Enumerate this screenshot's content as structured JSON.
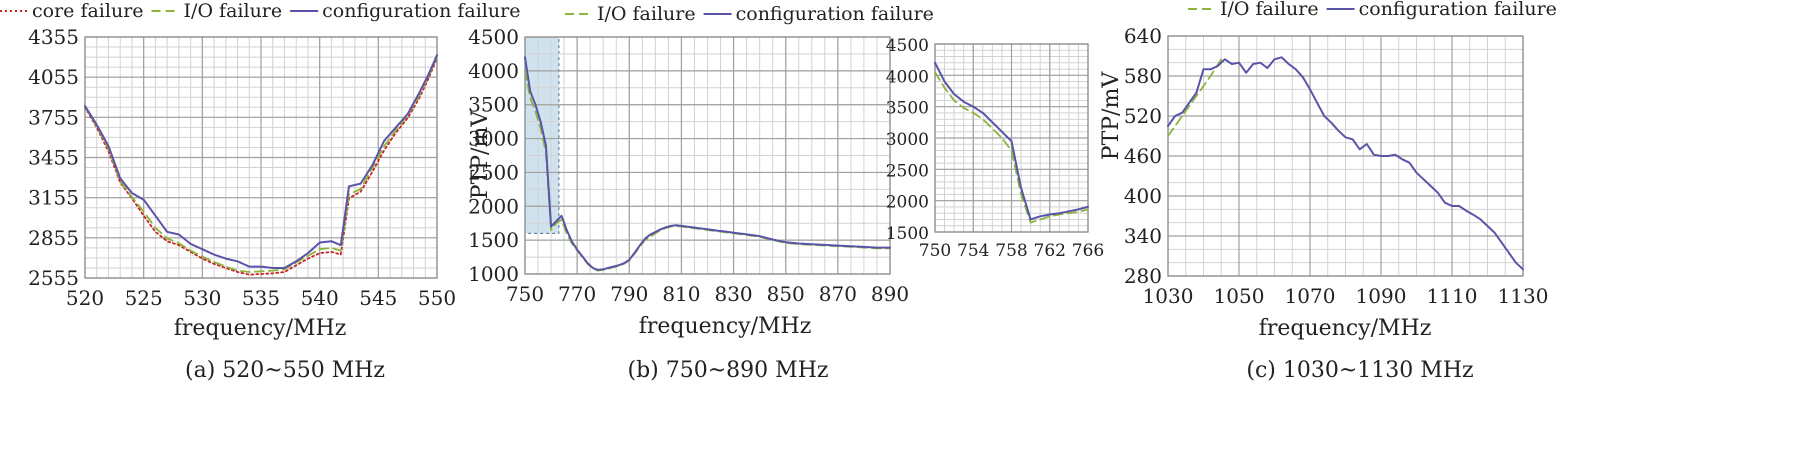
{
  "colors": {
    "core": "#cc2222",
    "io": "#8cb43c",
    "config": "#5a54a8",
    "grid_major": "#a0a0a0",
    "grid_minor": "#d2d2d2",
    "highlight": "#aacbe0"
  },
  "chart_data": [
    {
      "type": "line",
      "caption": "(a) 520~550 MHz",
      "xlabel": "frequency/MHz",
      "ylabel": "",
      "xlim": [
        520,
        550
      ],
      "ylim": [
        2555,
        4355
      ],
      "xticks": [
        "520",
        "525",
        "530",
        "535",
        "540",
        "545",
        "550"
      ],
      "yticks": [
        "2555",
        "2855",
        "3155",
        "3455",
        "3755",
        "4055",
        "4355"
      ],
      "grid": true,
      "legend": "top",
      "series": [
        {
          "name": "core failure",
          "style": "dotted",
          "color": "#cc2222",
          "x": [
            520,
            521,
            522,
            523,
            524,
            525,
            526,
            527,
            528,
            529,
            530,
            531,
            532,
            533,
            534,
            535,
            536,
            537,
            538,
            539,
            540,
            541,
            541.8,
            542.5,
            543.5,
            544.5,
            545.5,
            546.5,
            547.5,
            548.5,
            549.3,
            550
          ],
          "y": [
            3830,
            3680,
            3500,
            3270,
            3150,
            3020,
            2900,
            2830,
            2800,
            2750,
            2700,
            2660,
            2630,
            2600,
            2580,
            2585,
            2590,
            2600,
            2650,
            2700,
            2740,
            2750,
            2730,
            3150,
            3200,
            3350,
            3510,
            3640,
            3750,
            3900,
            4050,
            4200
          ]
        },
        {
          "name": "I/O failure",
          "style": "dashed",
          "color": "#8cb43c",
          "x": [
            520,
            521,
            522,
            523,
            524,
            525,
            526,
            527,
            528,
            529,
            530,
            531,
            532,
            533,
            534,
            535,
            536,
            537,
            538,
            539,
            540,
            541,
            541.8,
            542.5,
            543.5,
            544.5,
            545.5,
            546.5,
            547.5,
            548.5,
            549.3,
            550
          ],
          "y": [
            3835,
            3690,
            3520,
            3280,
            3160,
            3050,
            2930,
            2850,
            2815,
            2760,
            2715,
            2675,
            2640,
            2610,
            2600,
            2605,
            2610,
            2620,
            2670,
            2720,
            2770,
            2780,
            2760,
            3180,
            3220,
            3380,
            3540,
            3660,
            3770,
            3920,
            4070,
            4210
          ]
        },
        {
          "name": "configuration failure",
          "style": "solid",
          "color": "#5a54a8",
          "x": [
            520,
            521,
            522,
            523,
            524,
            525,
            526,
            527,
            528,
            529,
            530,
            531,
            532,
            533,
            534,
            535,
            536,
            537,
            538,
            539,
            540,
            541,
            541.8,
            542.5,
            543.5,
            544.5,
            545.5,
            546.5,
            547.5,
            548.5,
            549.3,
            550
          ],
          "y": [
            3840,
            3700,
            3540,
            3300,
            3190,
            3140,
            3020,
            2900,
            2880,
            2810,
            2770,
            2730,
            2700,
            2680,
            2640,
            2640,
            2630,
            2630,
            2680,
            2740,
            2820,
            2830,
            2800,
            3240,
            3260,
            3400,
            3580,
            3680,
            3780,
            3940,
            4080,
            4220
          ]
        }
      ]
    },
    {
      "type": "line",
      "caption": "(b) 750~890 MHz",
      "xlabel": "frequency/MHz",
      "ylabel": "PTP/mV",
      "xlim": [
        750,
        890
      ],
      "ylim": [
        1000,
        4500
      ],
      "xticks": [
        "750",
        "770",
        "790",
        "810",
        "830",
        "850",
        "870",
        "890"
      ],
      "yticks": [
        "1000",
        "1500",
        "2000",
        "2500",
        "3000",
        "3500",
        "4000",
        "4500"
      ],
      "grid": true,
      "legend": "top",
      "highlight_x": [
        750,
        763
      ],
      "series": [
        {
          "name": "I/O failure",
          "style": "dashed",
          "color": "#8cb43c",
          "x": [
            750,
            752,
            754,
            756,
            758,
            759,
            760,
            762,
            764,
            766,
            768,
            770,
            772,
            774,
            776,
            778,
            780,
            782,
            784,
            786,
            788,
            790,
            792,
            794,
            796,
            798,
            800,
            802,
            804,
            806,
            808,
            810,
            812,
            814,
            816,
            818,
            820,
            822,
            824,
            826,
            828,
            830,
            832,
            834,
            836,
            838,
            840,
            845,
            850,
            855,
            860,
            865,
            870,
            875,
            880,
            885,
            890
          ],
          "y": [
            4000,
            3600,
            3400,
            3150,
            2800,
            2200,
            1650,
            1750,
            1800,
            1600,
            1450,
            1350,
            1250,
            1150,
            1080,
            1050,
            1060,
            1080,
            1100,
            1120,
            1150,
            1200,
            1300,
            1400,
            1500,
            1550,
            1600,
            1650,
            1680,
            1700,
            1710,
            1700,
            1690,
            1680,
            1670,
            1660,
            1650,
            1640,
            1630,
            1620,
            1610,
            1600,
            1590,
            1580,
            1570,
            1560,
            1550,
            1500,
            1460,
            1440,
            1430,
            1420,
            1410,
            1400,
            1390,
            1380,
            1380
          ]
        },
        {
          "name": "configuration failure",
          "style": "solid",
          "color": "#5a54a8",
          "x": [
            750,
            752,
            754,
            756,
            758,
            759,
            760,
            762,
            764,
            766,
            768,
            770,
            772,
            774,
            776,
            778,
            780,
            782,
            784,
            786,
            788,
            790,
            792,
            794,
            796,
            798,
            800,
            802,
            804,
            806,
            808,
            810,
            812,
            814,
            816,
            818,
            820,
            822,
            824,
            826,
            828,
            830,
            832,
            834,
            836,
            838,
            840,
            845,
            850,
            855,
            860,
            865,
            870,
            875,
            880,
            885,
            890
          ],
          "y": [
            4200,
            3700,
            3500,
            3250,
            2900,
            2300,
            1700,
            1780,
            1860,
            1650,
            1480,
            1360,
            1260,
            1160,
            1090,
            1060,
            1070,
            1090,
            1110,
            1130,
            1160,
            1210,
            1310,
            1420,
            1520,
            1580,
            1620,
            1660,
            1690,
            1710,
            1720,
            1710,
            1700,
            1690,
            1680,
            1670,
            1660,
            1650,
            1640,
            1630,
            1620,
            1610,
            1600,
            1590,
            1580,
            1570,
            1560,
            1510,
            1470,
            1450,
            1440,
            1430,
            1420,
            1410,
            1400,
            1390,
            1390
          ]
        }
      ]
    },
    {
      "type": "line",
      "caption": "",
      "xlabel": "",
      "ylabel": "",
      "xlim": [
        750,
        766
      ],
      "ylim": [
        1500,
        4500
      ],
      "xticks": [
        "750",
        "754",
        "758",
        "762",
        "766"
      ],
      "yticks": [
        "1500",
        "2000",
        "2500",
        "3000",
        "3500",
        "4000",
        "4500"
      ],
      "grid": true,
      "series": [
        {
          "name": "I/O failure",
          "style": "dashed",
          "color": "#8cb43c",
          "x": [
            750,
            751,
            752,
            753,
            754,
            755,
            756,
            757,
            758,
            759,
            760,
            761,
            762,
            763,
            764,
            765,
            766
          ],
          "y": [
            4050,
            3800,
            3600,
            3480,
            3400,
            3300,
            3150,
            3000,
            2800,
            2100,
            1650,
            1700,
            1750,
            1780,
            1800,
            1820,
            1860
          ]
        },
        {
          "name": "configuration failure",
          "style": "solid",
          "color": "#5a54a8",
          "x": [
            750,
            751,
            752,
            753,
            754,
            755,
            756,
            757,
            758,
            759,
            760,
            761,
            762,
            763,
            764,
            765,
            766
          ],
          "y": [
            4200,
            3900,
            3700,
            3580,
            3500,
            3400,
            3250,
            3100,
            2950,
            2200,
            1700,
            1750,
            1780,
            1800,
            1830,
            1860,
            1900
          ]
        }
      ]
    },
    {
      "type": "line",
      "caption": "(c) 1030~1130 MHz",
      "xlabel": "frequency/MHz",
      "ylabel": "PTP/mV",
      "xlim": [
        1030,
        1130
      ],
      "ylim": [
        280,
        640
      ],
      "xticks": [
        "1030",
        "1050",
        "1070",
        "1090",
        "1110",
        "1130"
      ],
      "yticks": [
        "280",
        "340",
        "400",
        "460",
        "520",
        "580",
        "640"
      ],
      "grid": true,
      "legend": "top",
      "series": [
        {
          "name": "I/O failure",
          "style": "dashed",
          "color": "#8cb43c",
          "x": [
            1030,
            1034,
            1038,
            1042,
            1045
          ],
          "y": [
            490,
            520,
            550,
            580,
            605
          ]
        },
        {
          "name": "configuration failure",
          "style": "solid",
          "color": "#5a54a8",
          "x": [
            1030,
            1032,
            1034,
            1036,
            1038,
            1040,
            1042,
            1044,
            1046,
            1048,
            1050,
            1052,
            1054,
            1056,
            1058,
            1060,
            1062,
            1064,
            1066,
            1068,
            1070,
            1072,
            1074,
            1076,
            1078,
            1080,
            1082,
            1084,
            1086,
            1088,
            1090,
            1092,
            1094,
            1096,
            1098,
            1100,
            1102,
            1104,
            1106,
            1108,
            1110,
            1112,
            1114,
            1116,
            1118,
            1120,
            1122,
            1124,
            1126,
            1128,
            1130
          ],
          "y": [
            505,
            520,
            525,
            540,
            555,
            590,
            590,
            595,
            605,
            598,
            600,
            585,
            598,
            600,
            592,
            605,
            608,
            598,
            590,
            578,
            560,
            540,
            520,
            510,
            498,
            488,
            485,
            470,
            478,
            462,
            460,
            460,
            462,
            455,
            450,
            435,
            425,
            415,
            405,
            390,
            385,
            385,
            378,
            372,
            365,
            355,
            345,
            330,
            315,
            300,
            290
          ]
        }
      ]
    }
  ]
}
